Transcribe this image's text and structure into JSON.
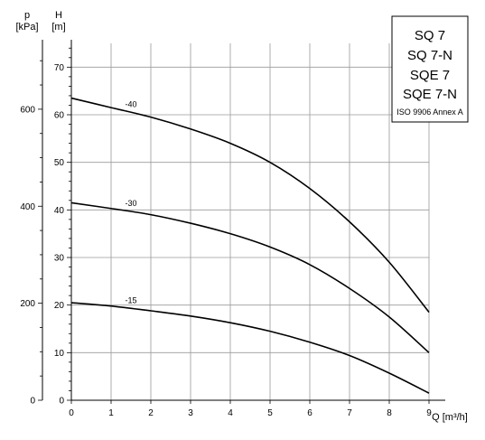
{
  "chart_data": {
    "type": "line",
    "title": "",
    "xlabel": "Q [m³/h]",
    "ylabel": "H [m]",
    "y2label_symbol": "p",
    "y2label_unit": "[kPa]",
    "ylabel_symbol": "H",
    "ylabel_unit": "[m]",
    "xlim": [
      0,
      9
    ],
    "ylim": [
      0,
      75
    ],
    "x_ticks": [
      "0",
      "1",
      "2",
      "3",
      "4",
      "5",
      "6",
      "7",
      "8",
      "9"
    ],
    "y_ticks": [
      "0",
      "10",
      "20",
      "30",
      "40",
      "50",
      "60",
      "70"
    ],
    "p_ticks": [
      "0",
      "200",
      "400",
      "600"
    ],
    "p_tick_values": [
      0,
      200,
      400,
      600
    ],
    "p_per_m": 9.81,
    "grid": true,
    "series": [
      {
        "name": "-40",
        "x": [
          0,
          1,
          2,
          3,
          4,
          5,
          6,
          7,
          8,
          9
        ],
        "y": [
          63.5,
          61.5,
          59.5,
          57.0,
          54.0,
          50.0,
          44.5,
          37.5,
          29.0,
          18.5
        ]
      },
      {
        "name": "-30",
        "x": [
          0,
          1,
          2,
          3,
          4,
          5,
          6,
          7,
          8,
          9
        ],
        "y": [
          41.5,
          40.3,
          39.0,
          37.2,
          35.0,
          32.2,
          28.5,
          23.5,
          17.5,
          10.0
        ]
      },
      {
        "name": "-15",
        "x": [
          0,
          1,
          2,
          3,
          4,
          5,
          6,
          7,
          8,
          9
        ],
        "y": [
          20.5,
          19.8,
          18.8,
          17.7,
          16.3,
          14.5,
          12.2,
          9.4,
          5.7,
          1.5
        ]
      }
    ]
  },
  "legend_box": {
    "models": [
      "SQ 7",
      "SQ 7-N",
      "SQE 7",
      "SQE 7-N"
    ],
    "standard": "ISO 9906 Annex A"
  }
}
